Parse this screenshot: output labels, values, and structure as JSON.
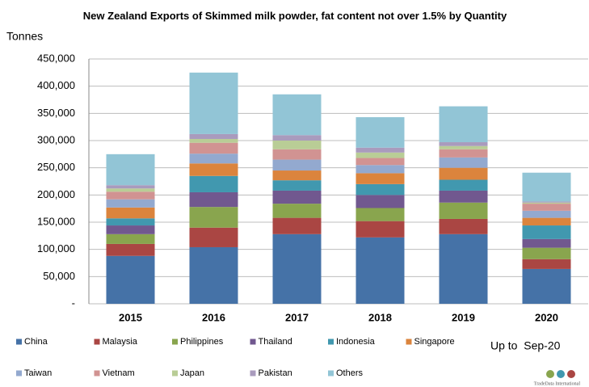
{
  "chart_data": {
    "type": "bar",
    "stacked": true,
    "title": "New Zealand Exports of Skimmed milk powder, fat content not over 1.5% by Quantity",
    "y_label": "Tonnes",
    "annotation": "Up to  Sep-20",
    "watermark": "TradeData International",
    "categories": [
      "2015",
      "2016",
      "2017",
      "2018",
      "2019",
      "2020"
    ],
    "ylim": [
      0,
      450000
    ],
    "yticks": [
      {
        "value": 0,
        "label": "-"
      },
      {
        "value": 50000,
        "label": "50,000"
      },
      {
        "value": 100000,
        "label": "100,000"
      },
      {
        "value": 150000,
        "label": "150,000"
      },
      {
        "value": 200000,
        "label": "200,000"
      },
      {
        "value": 250000,
        "label": "250,000"
      },
      {
        "value": 300000,
        "label": "300,000"
      },
      {
        "value": 350000,
        "label": "350,000"
      },
      {
        "value": 400000,
        "label": "400,000"
      },
      {
        "value": 450000,
        "label": "450,000"
      }
    ],
    "grid": true,
    "series": [
      {
        "name": "China",
        "color": "#4572a7",
        "values": [
          88000,
          104000,
          128000,
          122000,
          128000,
          64000
        ]
      },
      {
        "name": "Malaysia",
        "color": "#aa4643",
        "values": [
          22000,
          36000,
          30000,
          30000,
          28000,
          18000
        ]
      },
      {
        "name": "Philippines",
        "color": "#89a54e",
        "values": [
          18000,
          38000,
          26000,
          24000,
          30000,
          21000
        ]
      },
      {
        "name": "Thailand",
        "color": "#71588f",
        "values": [
          16000,
          27000,
          24000,
          24000,
          22000,
          16000
        ]
      },
      {
        "name": "Indonesia",
        "color": "#4198af",
        "values": [
          13000,
          30000,
          19000,
          20000,
          20000,
          25000
        ]
      },
      {
        "name": "Singapore",
        "color": "#db843d",
        "values": [
          20000,
          23000,
          18000,
          20000,
          22000,
          14000
        ]
      },
      {
        "name": "Taiwan",
        "color": "#93a9cf",
        "values": [
          15000,
          18000,
          20000,
          15000,
          19000,
          13000
        ]
      },
      {
        "name": "Vietnam",
        "color": "#d19392",
        "values": [
          14000,
          20000,
          19000,
          13000,
          15000,
          13000
        ]
      },
      {
        "name": "Japan",
        "color": "#b9cd96",
        "values": [
          6000,
          7000,
          16000,
          10000,
          6000,
          2000
        ]
      },
      {
        "name": "Pakistan",
        "color": "#a99bbd",
        "values": [
          6000,
          9000,
          10000,
          9000,
          7000,
          2000
        ]
      },
      {
        "name": "Others",
        "color": "#92c5d6",
        "values": [
          57000,
          113000,
          75000,
          56000,
          66000,
          53000
        ]
      }
    ]
  }
}
